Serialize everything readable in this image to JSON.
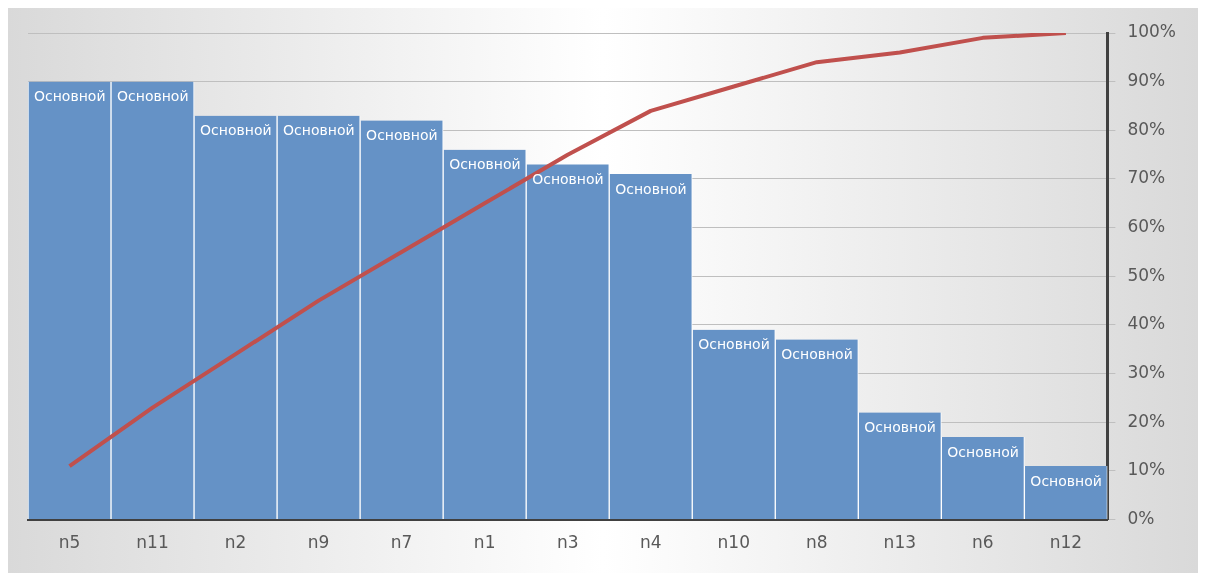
{
  "chart_data": {
    "type": "bar",
    "categories": [
      "n5",
      "n11",
      "n2",
      "n9",
      "n7",
      "n1",
      "n3",
      "n4",
      "n10",
      "n8",
      "n13",
      "n6",
      "n12"
    ],
    "series": [
      {
        "axis": "y2",
        "color": "#6592c6",
        "values": [
          90,
          90,
          83,
          83,
          82,
          76,
          73,
          71,
          39,
          37,
          22,
          17,
          11
        ],
        "value_labels": [
          "Основной",
          "Основной",
          "Основной",
          "Основной",
          "Основной",
          "Основной",
          "Основной",
          "Основной",
          "Основной",
          "Основной",
          "Основной",
          "Основной",
          "Основной"
        ]
      },
      {
        "type": "line",
        "axis": "y2",
        "color": "#c0504d",
        "marker": "none",
        "values": [
          11,
          23,
          34,
          45,
          55,
          65,
          75,
          84,
          89,
          94,
          96,
          99,
          100
        ]
      }
    ],
    "y2lim": [
      0,
      100
    ],
    "y2ticks": [
      {
        "value": 0,
        "label": "0%"
      },
      {
        "value": 10,
        "label": "10%"
      },
      {
        "value": 20,
        "label": "20%"
      },
      {
        "value": 30,
        "label": "30%"
      },
      {
        "value": 40,
        "label": "40%"
      },
      {
        "value": 50,
        "label": "50%"
      },
      {
        "value": 60,
        "label": "60%"
      },
      {
        "value": 70,
        "label": "70%"
      },
      {
        "value": 80,
        "label": "80%"
      },
      {
        "value": 90,
        "label": "90%"
      },
      {
        "value": 100,
        "label": "100%"
      }
    ],
    "grid": "y",
    "legend": false
  }
}
